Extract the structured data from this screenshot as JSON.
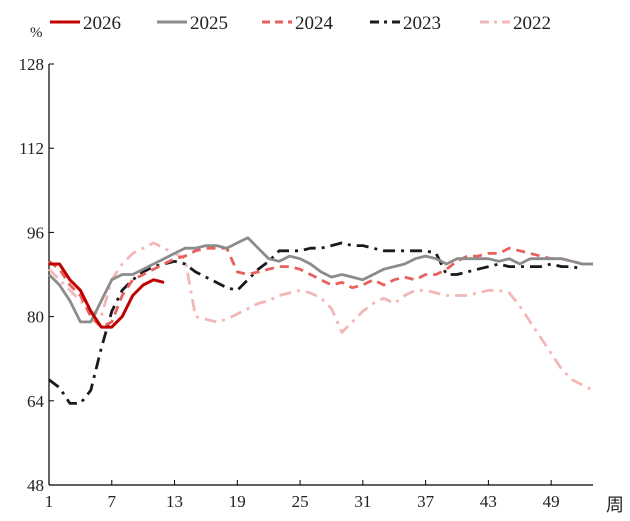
{
  "chart_data": {
    "type": "line",
    "title": "",
    "ylabel": "%",
    "xlabel": "周",
    "ylim": [
      48,
      128
    ],
    "xlim": [
      1,
      53
    ],
    "y_ticks": [
      "48",
      "64",
      "80",
      "96",
      "112",
      "128"
    ],
    "x_ticks": [
      "1",
      "7",
      "13",
      "19",
      "25",
      "31",
      "37",
      "43",
      "49"
    ],
    "legend_position": "top",
    "series": [
      {
        "name": "2026",
        "color": "#c00000",
        "style": "solid",
        "x": [
          1,
          2,
          3,
          4,
          5,
          6,
          7,
          8,
          9,
          10,
          11,
          12
        ],
        "y": [
          90,
          90,
          87,
          85,
          81,
          78,
          78,
          80,
          84,
          86,
          87,
          86.5
        ]
      },
      {
        "name": "2025",
        "color": "#8c8c8c",
        "style": "solid",
        "x": [
          1,
          2,
          3,
          4,
          5,
          6,
          7,
          8,
          9,
          10,
          11,
          12,
          13,
          14,
          15,
          16,
          17,
          18,
          19,
          20,
          21,
          22,
          23,
          24,
          25,
          26,
          27,
          28,
          29,
          30,
          31,
          32,
          33,
          34,
          35,
          36,
          37,
          38,
          39,
          40,
          41,
          42,
          43,
          44,
          45,
          46,
          47,
          48,
          49,
          50,
          51,
          52,
          53
        ],
        "y": [
          88,
          86,
          83,
          79,
          79,
          83,
          87,
          88,
          88,
          89,
          90,
          91,
          92,
          93,
          93,
          93.5,
          93.5,
          93,
          94,
          95,
          93,
          91,
          90.5,
          91.5,
          91,
          90,
          88.5,
          87.5,
          88,
          87.5,
          87,
          88,
          89,
          89.5,
          90,
          91,
          91.5,
          91,
          90,
          91,
          91,
          91,
          91,
          90.5,
          91,
          90,
          91,
          91,
          91,
          91,
          90.5,
          90,
          90
        ]
      },
      {
        "name": "2024",
        "color": "#e8605a",
        "style": "dashed",
        "x": [
          1,
          2,
          3,
          4,
          5,
          6,
          7,
          8,
          9,
          10,
          11,
          12,
          13,
          14,
          15,
          16,
          17,
          18,
          19,
          20,
          21,
          22,
          23,
          24,
          25,
          26,
          27,
          28,
          29,
          30,
          31,
          32,
          33,
          34,
          35,
          36,
          37,
          38,
          39,
          40,
          41,
          42,
          43,
          44,
          45,
          46,
          47,
          48,
          49,
          50,
          51,
          52,
          53
        ],
        "y": [
          90.5,
          89,
          86,
          84,
          80,
          78,
          79,
          84,
          87,
          88,
          89,
          90,
          91,
          91.5,
          92.5,
          93,
          93,
          93,
          88.5,
          88,
          88.5,
          89,
          89.5,
          89.5,
          89,
          88,
          87,
          86,
          86.5,
          85.5,
          86,
          87,
          86,
          87,
          87.5,
          87,
          88,
          88,
          89,
          90.5,
          91.5,
          91.5,
          92,
          92,
          93,
          92.5,
          92,
          91.5,
          91,
          91,
          90.5,
          90,
          90
        ]
      },
      {
        "name": "2023",
        "color": "#1a1a1a",
        "style": "dashdot",
        "x": [
          1,
          2,
          3,
          4,
          5,
          6,
          7,
          8,
          9,
          10,
          11,
          12,
          13,
          14,
          15,
          16,
          17,
          18,
          19,
          20,
          21,
          22,
          23,
          24,
          25,
          26,
          27,
          28,
          29,
          30,
          31,
          32,
          33,
          34,
          35,
          36,
          37,
          38,
          39,
          40,
          41,
          42,
          43,
          44,
          45,
          46,
          47,
          48,
          49,
          50,
          51,
          52
        ],
        "y": [
          68,
          66.5,
          63.5,
          63.5,
          66,
          74,
          81,
          85,
          87,
          88.5,
          89.5,
          90,
          90.5,
          90,
          88.5,
          87.5,
          86.5,
          85.5,
          85,
          87,
          89,
          90.5,
          92.5,
          92.5,
          92.5,
          93,
          93,
          93.5,
          94,
          93.5,
          93.5,
          93,
          92.5,
          92.5,
          92.5,
          92.5,
          92.5,
          92,
          88,
          88,
          88.5,
          89,
          89.5,
          90,
          89.5,
          89.5,
          89.5,
          89.5,
          90,
          89.5,
          89.5,
          89
        ]
      },
      {
        "name": "2022",
        "color": "#f2b7b7",
        "style": "dashdot",
        "x": [
          1,
          2,
          3,
          4,
          5,
          6,
          7,
          8,
          9,
          10,
          11,
          12,
          13,
          14,
          15,
          16,
          17,
          18,
          19,
          20,
          21,
          22,
          23,
          24,
          25,
          26,
          27,
          28,
          29,
          30,
          31,
          32,
          33,
          34,
          35,
          36,
          37,
          38,
          39,
          40,
          41,
          42,
          43,
          44,
          45,
          46,
          47,
          48,
          49,
          50,
          51,
          52,
          53
        ],
        "y": [
          89,
          87,
          85,
          83,
          81,
          80,
          87,
          90,
          92,
          93,
          94,
          93,
          92,
          91,
          80,
          79.5,
          79,
          79.5,
          80.5,
          81.5,
          82.5,
          83,
          84,
          84.5,
          85,
          84.5,
          83.5,
          81.5,
          77,
          79,
          81,
          82.5,
          83.5,
          82.5,
          84,
          85,
          85,
          84.5,
          84,
          84,
          84,
          84.5,
          85,
          85,
          84.5,
          82,
          79,
          76,
          73,
          70,
          68,
          67,
          66
        ]
      }
    ]
  }
}
